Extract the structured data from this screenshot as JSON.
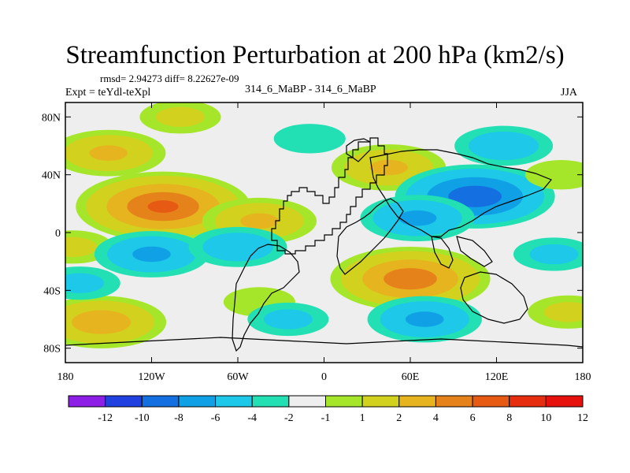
{
  "header": {
    "title": "Streamfunction Perturbation at 200 hPa (km2/s)",
    "stats": "rmsd= 2.94273 diff= 8.22627e-09",
    "expt": "Expt = teYdl-teXpl",
    "case": "314_6_MaBP - 314_6_MaBP",
    "season": "JJA"
  },
  "chart_data": {
    "type": "contour-map",
    "title": "Streamfunction Perturbation at 200 hPa (km2/s)",
    "xlabel": "",
    "ylabel": "",
    "xlim": [
      -180,
      180
    ],
    "ylim": [
      -90,
      90
    ],
    "x_ticks": [
      {
        "value": -180,
        "label": "180"
      },
      {
        "value": -120,
        "label": "120W"
      },
      {
        "value": -60,
        "label": "60W"
      },
      {
        "value": 0,
        "label": "0"
      },
      {
        "value": 60,
        "label": "60E"
      },
      {
        "value": 120,
        "label": "120E"
      },
      {
        "value": 180,
        "label": "180"
      }
    ],
    "y_ticks": [
      {
        "value": 80,
        "label": "80N"
      },
      {
        "value": 40,
        "label": "40N"
      },
      {
        "value": 0,
        "label": "0"
      },
      {
        "value": -40,
        "label": "40S"
      },
      {
        "value": -80,
        "label": "80S"
      }
    ],
    "colorbar": {
      "labels": [
        "-12",
        "-10",
        "-8",
        "-6",
        "-4",
        "-2",
        "-1",
        "1",
        "2",
        "4",
        "6",
        "8",
        "10",
        "12"
      ],
      "colors": [
        "#8c1ee6",
        "#2040e0",
        "#1470e0",
        "#10a0e6",
        "#1ec8e8",
        "#22e0b4",
        "#eeeeee",
        "#a6e62a",
        "#d2d21e",
        "#e6b41e",
        "#e6821a",
        "#e65a14",
        "#e62d10",
        "#e6100c"
      ]
    },
    "background_level_color": "#eeeeee",
    "anomaly_centers": [
      {
        "lon": -112,
        "lat": 18,
        "value": 8
      },
      {
        "lon": -150,
        "lat": 55,
        "value": 4
      },
      {
        "lon": -45,
        "lat": 8,
        "value": 4
      },
      {
        "lon": 60,
        "lat": -32,
        "value": 7
      },
      {
        "lon": 45,
        "lat": 45,
        "value": 4
      },
      {
        "lon": -155,
        "lat": -62,
        "value": 5
      },
      {
        "lon": -175,
        "lat": -10,
        "value": 2
      },
      {
        "lon": -45,
        "lat": -48,
        "value": 1.5
      },
      {
        "lon": 105,
        "lat": 25,
        "value": -7
      },
      {
        "lon": 65,
        "lat": 10,
        "value": -4
      },
      {
        "lon": -120,
        "lat": -15,
        "value": -4
      },
      {
        "lon": -60,
        "lat": -10,
        "value": -3
      },
      {
        "lon": 125,
        "lat": 60,
        "value": -3
      },
      {
        "lon": 70,
        "lat": -60,
        "value": -4
      },
      {
        "lon": 160,
        "lat": -15,
        "value": -2
      },
      {
        "lon": -170,
        "lat": -35,
        "value": -2
      },
      {
        "lon": -25,
        "lat": -60,
        "value": -2
      },
      {
        "lon": -100,
        "lat": 80,
        "value": 2
      },
      {
        "lon": -10,
        "lat": 65,
        "value": -1.5
      },
      {
        "lon": 165,
        "lat": 40,
        "value": 1.5
      },
      {
        "lon": 170,
        "lat": -55,
        "value": 2
      }
    ]
  }
}
